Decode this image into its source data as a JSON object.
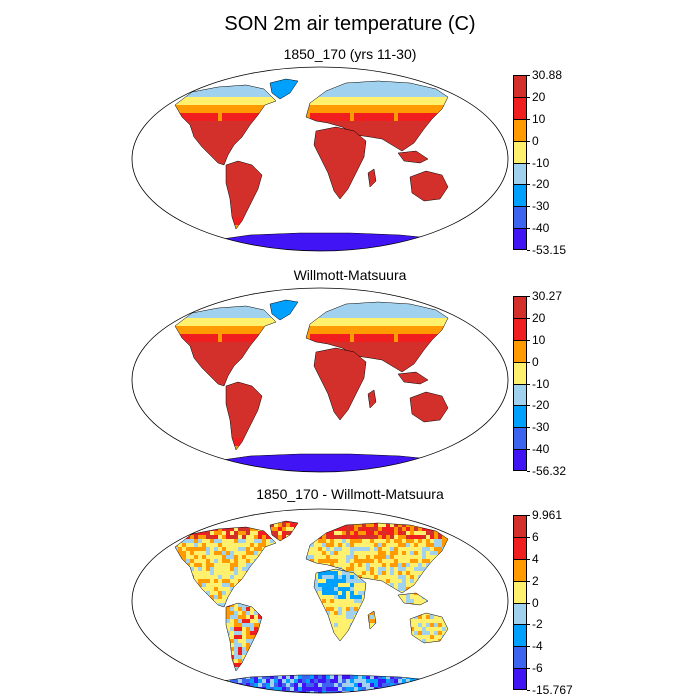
{
  "title": "SON 2m air temperature (C)",
  "panels": [
    {
      "id": "model",
      "title": "1850_170 (yrs 11-30)",
      "mode": "abs",
      "colorbar": {
        "colors": [
          "#d3302b",
          "#f01e1e",
          "#ff9b00",
          "#fff06e",
          "#a0d2f0",
          "#00a0ff",
          "#3c64f0",
          "#4014f5"
        ],
        "labels": [
          "30.88",
          "20",
          "10",
          "0",
          "-10",
          "-20",
          "-30",
          "-40",
          "-53.15"
        ]
      }
    },
    {
      "id": "obs",
      "title": "Willmott-Matsuura",
      "mode": "abs",
      "colorbar": {
        "colors": [
          "#d3302b",
          "#f01e1e",
          "#ff9b00",
          "#fff06e",
          "#a0d2f0",
          "#00a0ff",
          "#3c64f0",
          "#4014f5"
        ],
        "labels": [
          "30.27",
          "20",
          "10",
          "0",
          "-10",
          "-20",
          "-30",
          "-40",
          "-56.32"
        ]
      }
    },
    {
      "id": "diff",
      "title": "1850_170 - Willmott-Matsuura",
      "mode": "diff",
      "colorbar": {
        "colors": [
          "#d3302b",
          "#f01e1e",
          "#ff9b00",
          "#fff06e",
          "#a0d2f0",
          "#00a0ff",
          "#3c64f0",
          "#4014f5"
        ],
        "labels": [
          "9.961",
          "6",
          "4",
          "2",
          "0",
          "-2",
          "-4",
          "-6",
          "-15.767"
        ]
      }
    }
  ]
}
